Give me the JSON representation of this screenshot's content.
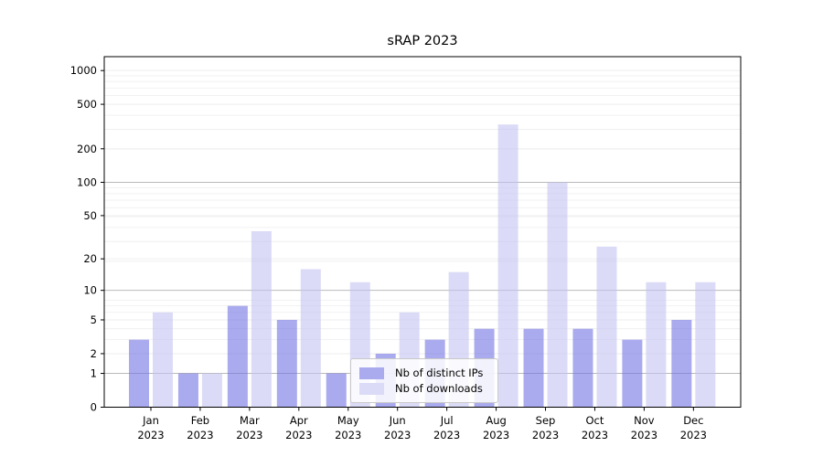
{
  "chart_data": {
    "type": "bar",
    "title": "sRAP 2023",
    "categories": [
      "Jan",
      "Feb",
      "Mar",
      "Apr",
      "May",
      "Jun",
      "Jul",
      "Aug",
      "Sep",
      "Oct",
      "Nov",
      "Dec"
    ],
    "year_label": "2023",
    "series": [
      {
        "name": "Nb of distinct IPs",
        "color": "#aaaaee",
        "values": [
          3,
          1,
          7,
          5,
          1,
          2,
          3,
          4,
          4,
          4,
          3,
          5
        ]
      },
      {
        "name": "Nb of downloads",
        "color": "#dbdbf7",
        "values": [
          6,
          1,
          36,
          16,
          12,
          6,
          15,
          330,
          100,
          26,
          12,
          12
        ]
      }
    ],
    "xlabel": "",
    "ylabel": "",
    "yscale": "log1p",
    "yticks": [
      0,
      1,
      2,
      5,
      10,
      20,
      50,
      100,
      200,
      500,
      1000
    ],
    "ylim": [
      0,
      1330
    ],
    "grid": {
      "enabled": true,
      "major_color": "#b9b9b9",
      "minor_color": "#ededed"
    },
    "legend_position": "lower center",
    "axis_color": "#000000",
    "text_color": "#000000",
    "background_color": "#ffffff"
  }
}
